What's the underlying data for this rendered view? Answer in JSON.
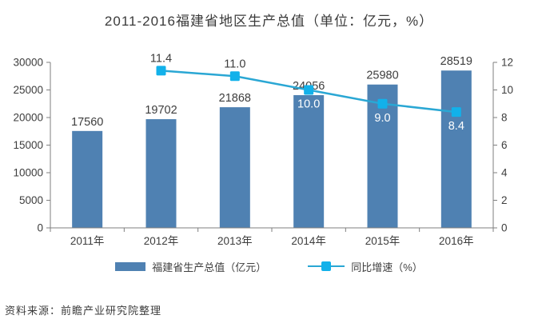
{
  "title": "2011-2016福建省地区生产总值（单位：亿元，%）",
  "source_note": "资料来源：前瞻产业研究院整理",
  "colors": {
    "bar": "#4f81b2",
    "line": "#2aa7d4",
    "marker": "#12b1ea",
    "axis": "#7f7f7f",
    "label_dark": "#3d3d3d",
    "label_white": "#ffffff"
  },
  "chart_data": {
    "type": "bar+line",
    "title": "2011-2016福建省地区生产总值（单位：亿元，%）",
    "categories": [
      "2011年",
      "2012年",
      "2013年",
      "2014年",
      "2015年",
      "2016年"
    ],
    "series": [
      {
        "name": "福建省生产总值（亿元）",
        "type": "bar",
        "axis": "left",
        "values": [
          17560,
          19702,
          21868,
          24056,
          25980,
          28519
        ]
      },
      {
        "name": "同比增速（%）",
        "type": "line",
        "axis": "right",
        "values": [
          null,
          11.4,
          11.0,
          10.0,
          9.0,
          8.4
        ],
        "label_positions": [
          null,
          "above",
          "above",
          "below",
          "below",
          "below"
        ]
      }
    ],
    "left_axis": {
      "min": 0,
      "max": 30000,
      "step": 5000,
      "ticks": [
        "0",
        "5000",
        "10000",
        "15000",
        "20000",
        "25000",
        "30000"
      ]
    },
    "right_axis": {
      "min": 0,
      "max": 12,
      "step": 2,
      "ticks": [
        "0",
        "2",
        "4",
        "6",
        "8",
        "10",
        "12"
      ]
    },
    "grid": false,
    "legend_position": "bottom"
  }
}
